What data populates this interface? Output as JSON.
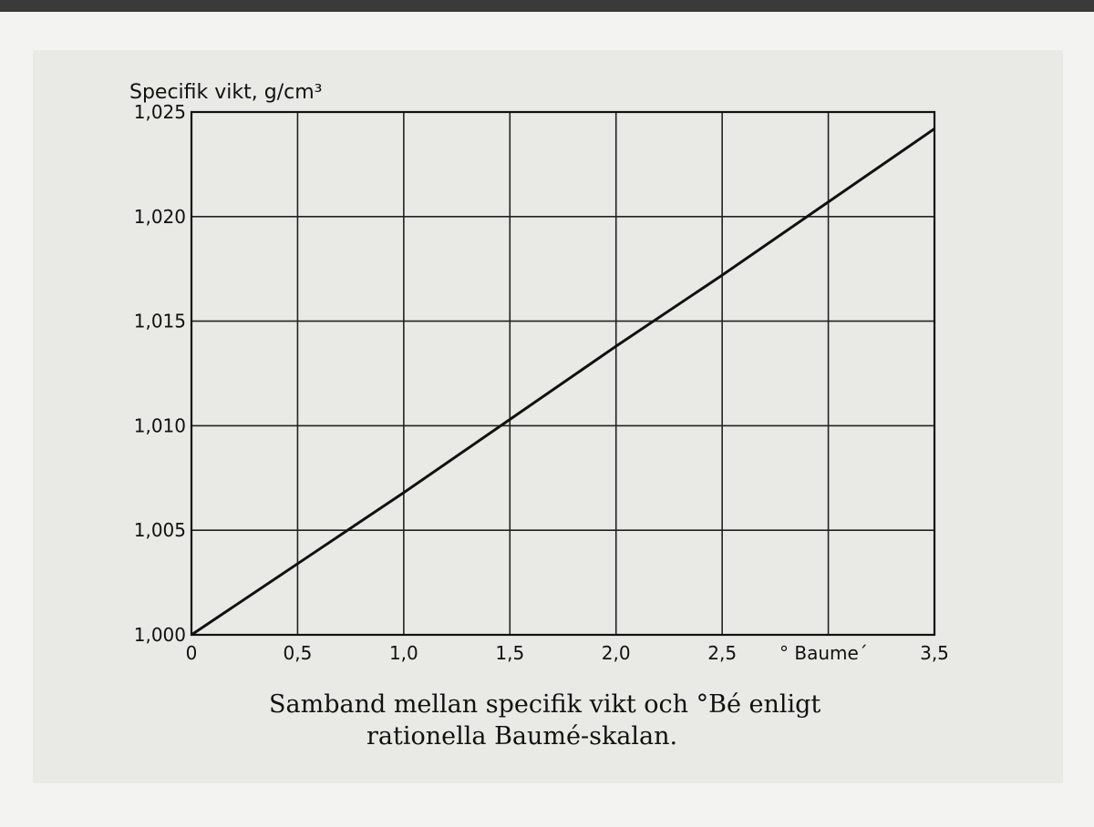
{
  "chart_data": {
    "type": "line",
    "ylabel": "Specifik vikt, g/cm³",
    "xlabel": "° Baume´",
    "xlim": [
      0,
      3.5
    ],
    "ylim": [
      1.0,
      1.025
    ],
    "x_ticks": [
      {
        "value": 0,
        "label": "0"
      },
      {
        "value": 0.5,
        "label": "0,5"
      },
      {
        "value": 1.0,
        "label": "1,0"
      },
      {
        "value": 1.5,
        "label": "1,5"
      },
      {
        "value": 2.0,
        "label": "2,0"
      },
      {
        "value": 2.5,
        "label": "2,5"
      },
      {
        "value": 3.0,
        "label": ""
      },
      {
        "value": 3.5,
        "label": "3,5"
      }
    ],
    "y_ticks": [
      {
        "value": 1.0,
        "label": "1,000"
      },
      {
        "value": 1.005,
        "label": "1,005"
      },
      {
        "value": 1.01,
        "label": "1,010"
      },
      {
        "value": 1.015,
        "label": "1,015"
      },
      {
        "value": 1.02,
        "label": "1,020"
      },
      {
        "value": 1.025,
        "label": "1,025"
      }
    ],
    "grid": true,
    "series": [
      {
        "x": [
          0,
          0.5,
          1.0,
          1.5,
          2.0,
          2.5,
          3.0,
          3.5
        ],
        "y": [
          1.0,
          1.0034,
          1.0068,
          1.0103,
          1.0138,
          1.0172,
          1.0207,
          1.0242
        ]
      }
    ],
    "caption_line1": "Samband mellan specifik vikt och °Bé enligt",
    "caption_line2": "rationella Baumé-skalan.",
    "colors": {
      "line": "#111111",
      "grid": "#222222",
      "background": "#e9e9e6"
    }
  }
}
